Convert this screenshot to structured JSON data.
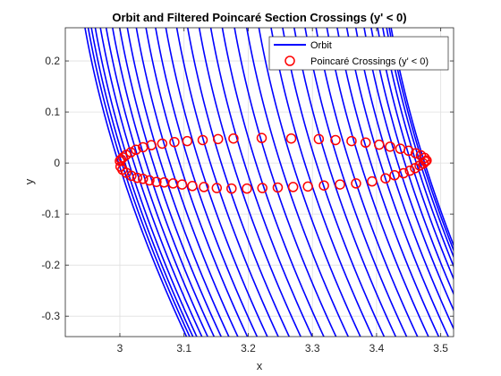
{
  "colors": {
    "orbit": "#0000ff",
    "crossing": "#ff0000",
    "grid": "#dfdfdf",
    "axis": "#262626",
    "background": "#ffffff"
  },
  "chart_data": {
    "type": "line",
    "title": "Orbit and Filtered Poincaré Section Crossings (y' < 0)",
    "xlabel": "x",
    "ylabel": "y",
    "xlim": [
      2.915,
      3.52
    ],
    "ylim": [
      -0.34,
      0.265
    ],
    "xticks": [
      3,
      3.1,
      3.2,
      3.3,
      3.4,
      3.5
    ],
    "xtick_labels": [
      "3",
      "3.1",
      "3.2",
      "3.3",
      "3.4",
      "3.5"
    ],
    "yticks": [
      -0.3,
      -0.2,
      -0.1,
      0,
      0.1,
      0.2
    ],
    "ytick_labels": [
      "-0.3",
      "-0.2",
      "-0.1",
      "0",
      "0.1",
      "0.2"
    ],
    "grid": true,
    "legend": {
      "location": "top-right",
      "entries": [
        {
          "label": "Orbit",
          "style": "line"
        },
        {
          "label": "Poincaré Crossings (y' < 0)",
          "style": "circle"
        }
      ]
    },
    "series": [
      {
        "name": "Orbit",
        "style": "line",
        "description_points": "Near-vertical orbit strands; each strand is x(y) = x0 + 0.19*y^2 - 0.25*y + 0.03*y^3 approximately",
        "strand_x_at_y0": [
          2.998,
          3.003,
          3.008,
          3.014,
          3.022,
          3.031,
          3.041,
          3.052,
          3.064,
          3.078,
          3.093,
          3.108,
          3.124,
          3.141,
          3.158,
          3.176,
          3.194,
          3.212,
          3.231,
          3.25,
          3.269,
          3.288,
          3.306,
          3.324,
          3.341,
          3.358,
          3.375,
          3.391,
          3.406,
          3.42,
          3.433,
          3.444,
          3.454,
          3.462,
          3.468,
          3.472,
          3.475
        ]
      },
      {
        "name": "Poincaré Crossings (y' < 0)",
        "style": "scatter",
        "x": [
          3.0,
          3.001,
          3.004,
          3.01,
          3.018,
          3.027,
          3.036,
          3.046,
          3.057,
          3.069,
          3.083,
          3.097,
          3.113,
          3.131,
          3.151,
          3.174,
          3.198,
          3.222,
          3.246,
          3.27,
          3.293,
          3.318,
          3.343,
          3.368,
          3.393,
          3.414,
          3.428,
          3.442,
          3.452,
          3.46,
          3.467,
          3.473,
          3.476,
          3.478,
          3.475,
          3.469,
          3.461,
          3.45,
          3.437,
          3.421,
          3.404,
          3.383,
          3.361,
          3.336,
          3.31,
          3.267,
          3.221,
          3.177,
          3.153,
          3.129,
          3.105,
          3.085,
          3.066,
          3.049,
          3.036,
          3.025,
          3.017,
          3.01,
          3.005,
          3.002
        ],
        "y": [
          0.004,
          -0.007,
          -0.013,
          -0.019,
          -0.025,
          -0.029,
          -0.031,
          -0.034,
          -0.037,
          -0.038,
          -0.04,
          -0.042,
          -0.045,
          -0.047,
          -0.049,
          -0.05,
          -0.05,
          -0.049,
          -0.048,
          -0.047,
          -0.046,
          -0.044,
          -0.042,
          -0.04,
          -0.036,
          -0.03,
          -0.024,
          -0.02,
          -0.015,
          -0.01,
          -0.005,
          -0.001,
          0.003,
          0.005,
          0.01,
          0.015,
          0.019,
          0.024,
          0.028,
          0.032,
          0.036,
          0.04,
          0.043,
          0.045,
          0.047,
          0.048,
          0.049,
          0.048,
          0.047,
          0.045,
          0.043,
          0.041,
          0.038,
          0.035,
          0.031,
          0.026,
          0.021,
          0.016,
          0.011,
          0.007
        ]
      }
    ]
  }
}
